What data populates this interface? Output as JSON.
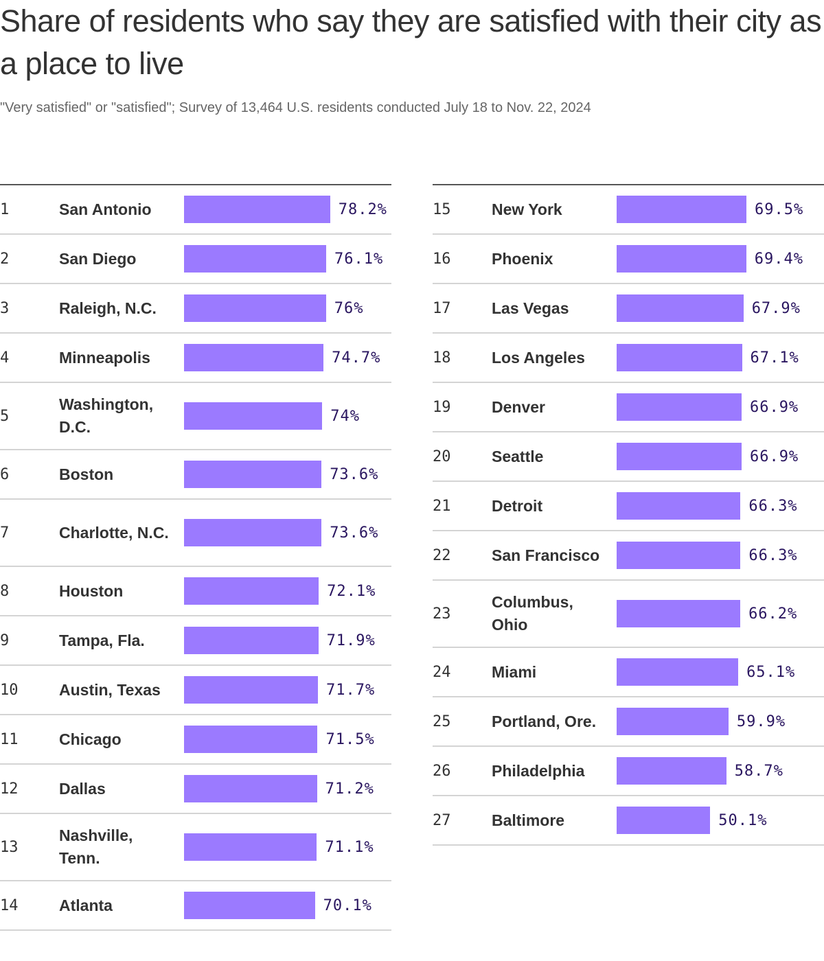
{
  "title": "Share of residents who say they are satisfied with their city as a place to live",
  "subtitle": "\"Very satisfied\" or \"satisfied\"; Survey of 13,464 U.S. residents conducted July 18 to Nov. 22, 2024",
  "colors": {
    "bar": "#9b7aff",
    "value_label": "#2a1660"
  },
  "chart_data": {
    "type": "bar",
    "orientation": "horizontal",
    "title": "Share of residents who say they are satisfied with their city as a place to live",
    "subtitle": "\"Very satisfied\" or \"satisfied\"; Survey of 13,464 U.S. residents conducted July 18 to Nov. 22, 2024",
    "rows": [
      {
        "rank": "1",
        "city": "San Antonio",
        "value": 78.2,
        "label": "78.2%"
      },
      {
        "rank": "2",
        "city": "San Diego",
        "value": 76.1,
        "label": "76.1%"
      },
      {
        "rank": "3",
        "city": "Raleigh, N.C.",
        "value": 76,
        "label": "76%"
      },
      {
        "rank": "4",
        "city": "Minneapolis",
        "value": 74.7,
        "label": "74.7%"
      },
      {
        "rank": "5",
        "city": "Washington, D.C.",
        "value": 74,
        "label": "74%"
      },
      {
        "rank": "6",
        "city": "Boston",
        "value": 73.6,
        "label": "73.6%"
      },
      {
        "rank": "7",
        "city": "Charlotte, N.C.",
        "value": 73.6,
        "label": "73.6%"
      },
      {
        "rank": "8",
        "city": "Houston",
        "value": 72.1,
        "label": "72.1%"
      },
      {
        "rank": "9",
        "city": "Tampa, Fla.",
        "value": 71.9,
        "label": "71.9%"
      },
      {
        "rank": "10",
        "city": "Austin, Texas",
        "value": 71.7,
        "label": "71.7%"
      },
      {
        "rank": "11",
        "city": "Chicago",
        "value": 71.5,
        "label": "71.5%"
      },
      {
        "rank": "12",
        "city": "Dallas",
        "value": 71.2,
        "label": "71.2%"
      },
      {
        "rank": "13",
        "city": "Nashville, Tenn.",
        "value": 71.1,
        "label": "71.1%"
      },
      {
        "rank": "14",
        "city": "Atlanta",
        "value": 70.1,
        "label": "70.1%"
      },
      {
        "rank": "15",
        "city": "New York",
        "value": 69.5,
        "label": "69.5%"
      },
      {
        "rank": "16",
        "city": "Phoenix",
        "value": 69.4,
        "label": "69.4%"
      },
      {
        "rank": "17",
        "city": "Las Vegas",
        "value": 67.9,
        "label": "67.9%"
      },
      {
        "rank": "18",
        "city": "Los Angeles",
        "value": 67.1,
        "label": "67.1%"
      },
      {
        "rank": "19",
        "city": "Denver",
        "value": 66.9,
        "label": "66.9%"
      },
      {
        "rank": "20",
        "city": "Seattle",
        "value": 66.9,
        "label": "66.9%"
      },
      {
        "rank": "21",
        "city": "Detroit",
        "value": 66.3,
        "label": "66.3%"
      },
      {
        "rank": "22",
        "city": "San Francisco",
        "value": 66.3,
        "label": "66.3%"
      },
      {
        "rank": "23",
        "city": "Columbus, Ohio",
        "value": 66.2,
        "label": "66.2%"
      },
      {
        "rank": "24",
        "city": "Miami",
        "value": 65.1,
        "label": "65.1%"
      },
      {
        "rank": "25",
        "city": "Portland, Ore.",
        "value": 59.9,
        "label": "59.9%"
      },
      {
        "rank": "26",
        "city": "Philadelphia",
        "value": 58.7,
        "label": "58.7%"
      },
      {
        "rank": "27",
        "city": "Baltimore",
        "value": 50.1,
        "label": "50.1%"
      }
    ]
  }
}
